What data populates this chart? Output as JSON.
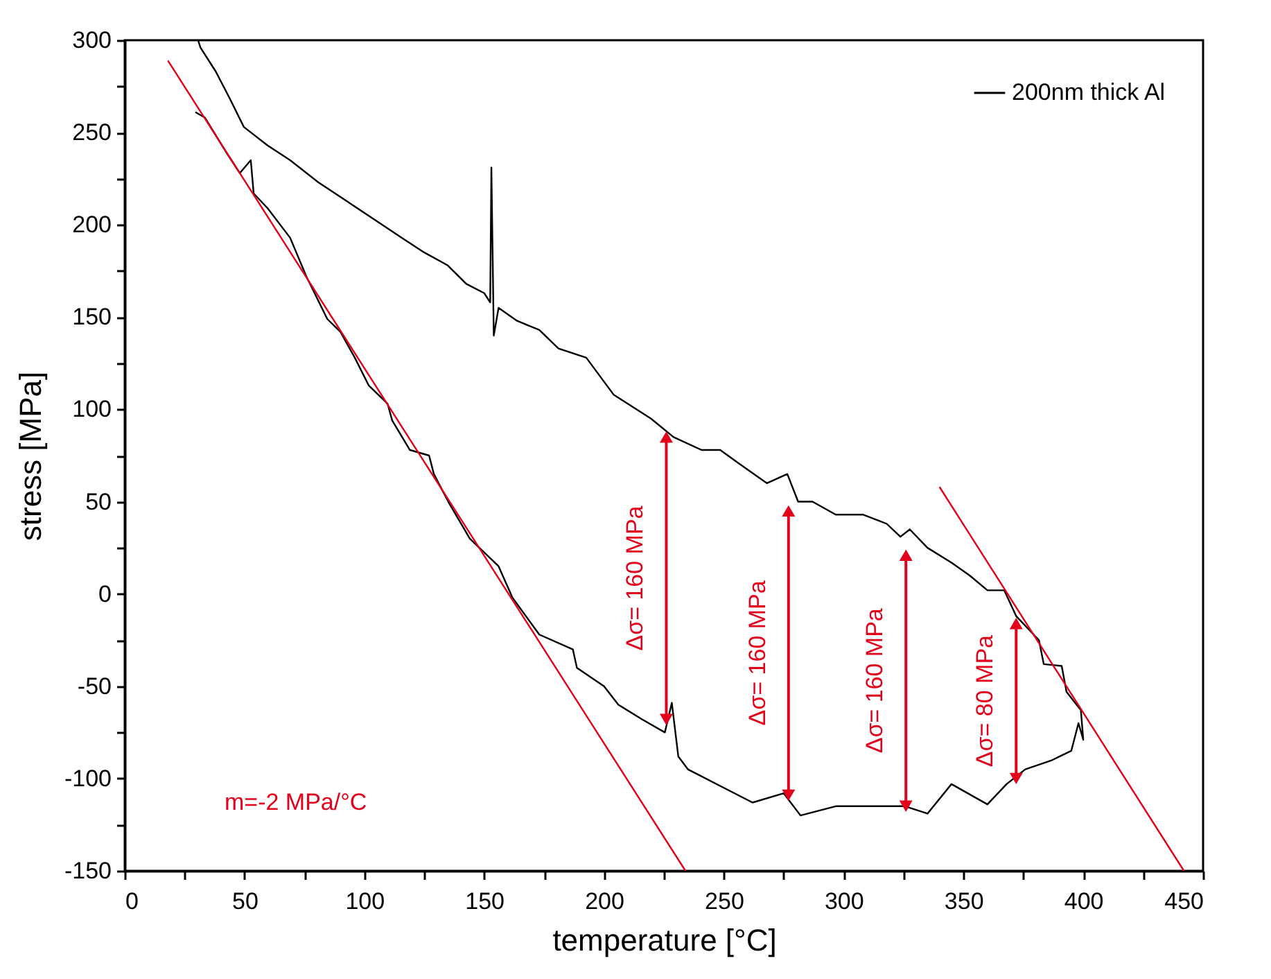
{
  "chart_data": {
    "type": "line",
    "xlabel": "temperature [°C]",
    "ylabel": "stress [MPa]",
    "xlim": [
      0,
      450
    ],
    "ylim": [
      -150,
      300
    ],
    "xticks": [
      0,
      {
        "value": 25,
        "label": null
      },
      50,
      {
        "value": 75,
        "label": null
      },
      100,
      {
        "value": 125,
        "label": null
      },
      150,
      {
        "value": 175,
        "label": null
      },
      200,
      {
        "value": 225,
        "label": null
      },
      250,
      {
        "value": 275,
        "label": null
      },
      300,
      {
        "value": 325,
        "label": null
      },
      350,
      {
        "value": 375,
        "label": null
      },
      400,
      {
        "value": 425,
        "label": null
      },
      450
    ],
    "yticks": [
      -150,
      {
        "value": -125,
        "label": null
      },
      -100,
      {
        "value": -75,
        "label": null
      },
      -50,
      {
        "value": -25,
        "label": null
      },
      0,
      {
        "value": 25,
        "label": null
      },
      50,
      {
        "value": 75,
        "label": null
      },
      100,
      {
        "value": 125,
        "label": null
      },
      150,
      {
        "value": 175,
        "label": null
      },
      200,
      {
        "value": 225,
        "label": null
      },
      250,
      {
        "value": 275,
        "label": null
      },
      300
    ],
    "grid": false,
    "legend": "top right",
    "series": [
      {
        "name": "200nm thick Al",
        "color": "#000000",
        "x": [
          29.5,
          33.5,
          42,
          48,
          52.6,
          53.8,
          59.6,
          69,
          75.8,
          84.5,
          90,
          96,
          101.8,
          109.7,
          111.6,
          119,
          127,
          129,
          135,
          144,
          156,
          161.8,
          173,
          187,
          188.7,
          200,
          206,
          216,
          225.4,
          228.3,
          231,
          235,
          250,
          262,
          275,
          282,
          296.7,
          314,
          325.6,
          335,
          345,
          360,
          368,
          375.8,
          387,
          395,
          398,
          400,
          399,
          393,
          391,
          383.5,
          381.5,
          372,
          367,
          360,
          352.6,
          345,
          335,
          327.6,
          323.7,
          318,
          308,
          296.7,
          287,
          281,
          276.5,
          268,
          256,
          248.5,
          240.7,
          229,
          219.6,
          210,
          204,
          192.6,
          181,
          173,
          163.7,
          156,
          154,
          153,
          152.5,
          150,
          142.5,
          134.8,
          125,
          115.5,
          104,
          92.4,
          80.8,
          69,
          59.6,
          49.7,
          44,
          38,
          31.6,
          30.6
        ],
        "values": [
          261,
          258,
          240,
          228,
          235,
          217,
          209,
          193,
          172,
          149,
          142,
          128,
          113,
          103,
          94,
          78,
          75,
          65,
          50,
          30,
          15,
          -2,
          -22,
          -30,
          -40,
          -50,
          -60,
          -68,
          -75,
          -59,
          -88,
          -95,
          -105,
          -113,
          -108,
          -120,
          -115,
          -115,
          -115,
          -119,
          -103,
          -114,
          -103,
          -95,
          -90,
          -85,
          -70,
          -79,
          -63,
          -53,
          -39,
          -38,
          -25,
          -12,
          2,
          2,
          10,
          17,
          25,
          35,
          31,
          38,
          43,
          43,
          50,
          50,
          65,
          60,
          71,
          78,
          78,
          85,
          95,
          103,
          108,
          128,
          133,
          143,
          148,
          155,
          140,
          231,
          158,
          163,
          168,
          178,
          185,
          193,
          203,
          213,
          223,
          235,
          243,
          253,
          268,
          283,
          296,
          300
        ]
      },
      {
        "color": "#e2001a",
        "x": [
          18,
          234
        ],
        "values": [
          289,
          -150
        ]
      },
      {
        "color": "#e2001a",
        "x": [
          340,
          442
        ],
        "values": [
          58,
          -150
        ]
      },
      {
        "color": "#e2001a",
        "marker": "triangle",
        "x": [
          226,
          226
        ],
        "values": [
          85,
          -68
        ]
      },
      {
        "color": "#e2001a",
        "marker": "triangle",
        "x": [
          277,
          277
        ],
        "values": [
          45,
          -109
        ]
      },
      {
        "color": "#e2001a",
        "marker": "triangle",
        "x": [
          326,
          326
        ],
        "values": [
          21,
          -115
        ]
      },
      {
        "color": "#e2001a",
        "marker": "triangle",
        "x": [
          372,
          372
        ],
        "values": [
          -16,
          -100
        ]
      }
    ],
    "annotations": [
      {
        "text": "Δσ= 160 MPa",
        "x": 226,
        "y": 8.5
      },
      {
        "text": "Δσ= 160 MPa",
        "x": 277,
        "y": -32
      },
      {
        "text": "Δσ= 160 MPa",
        "x": 326,
        "y": -47
      },
      {
        "text": "Δσ= 80 MPa",
        "x": 372,
        "y": -58
      },
      "m=-2 MPa/°C"
    ]
  }
}
